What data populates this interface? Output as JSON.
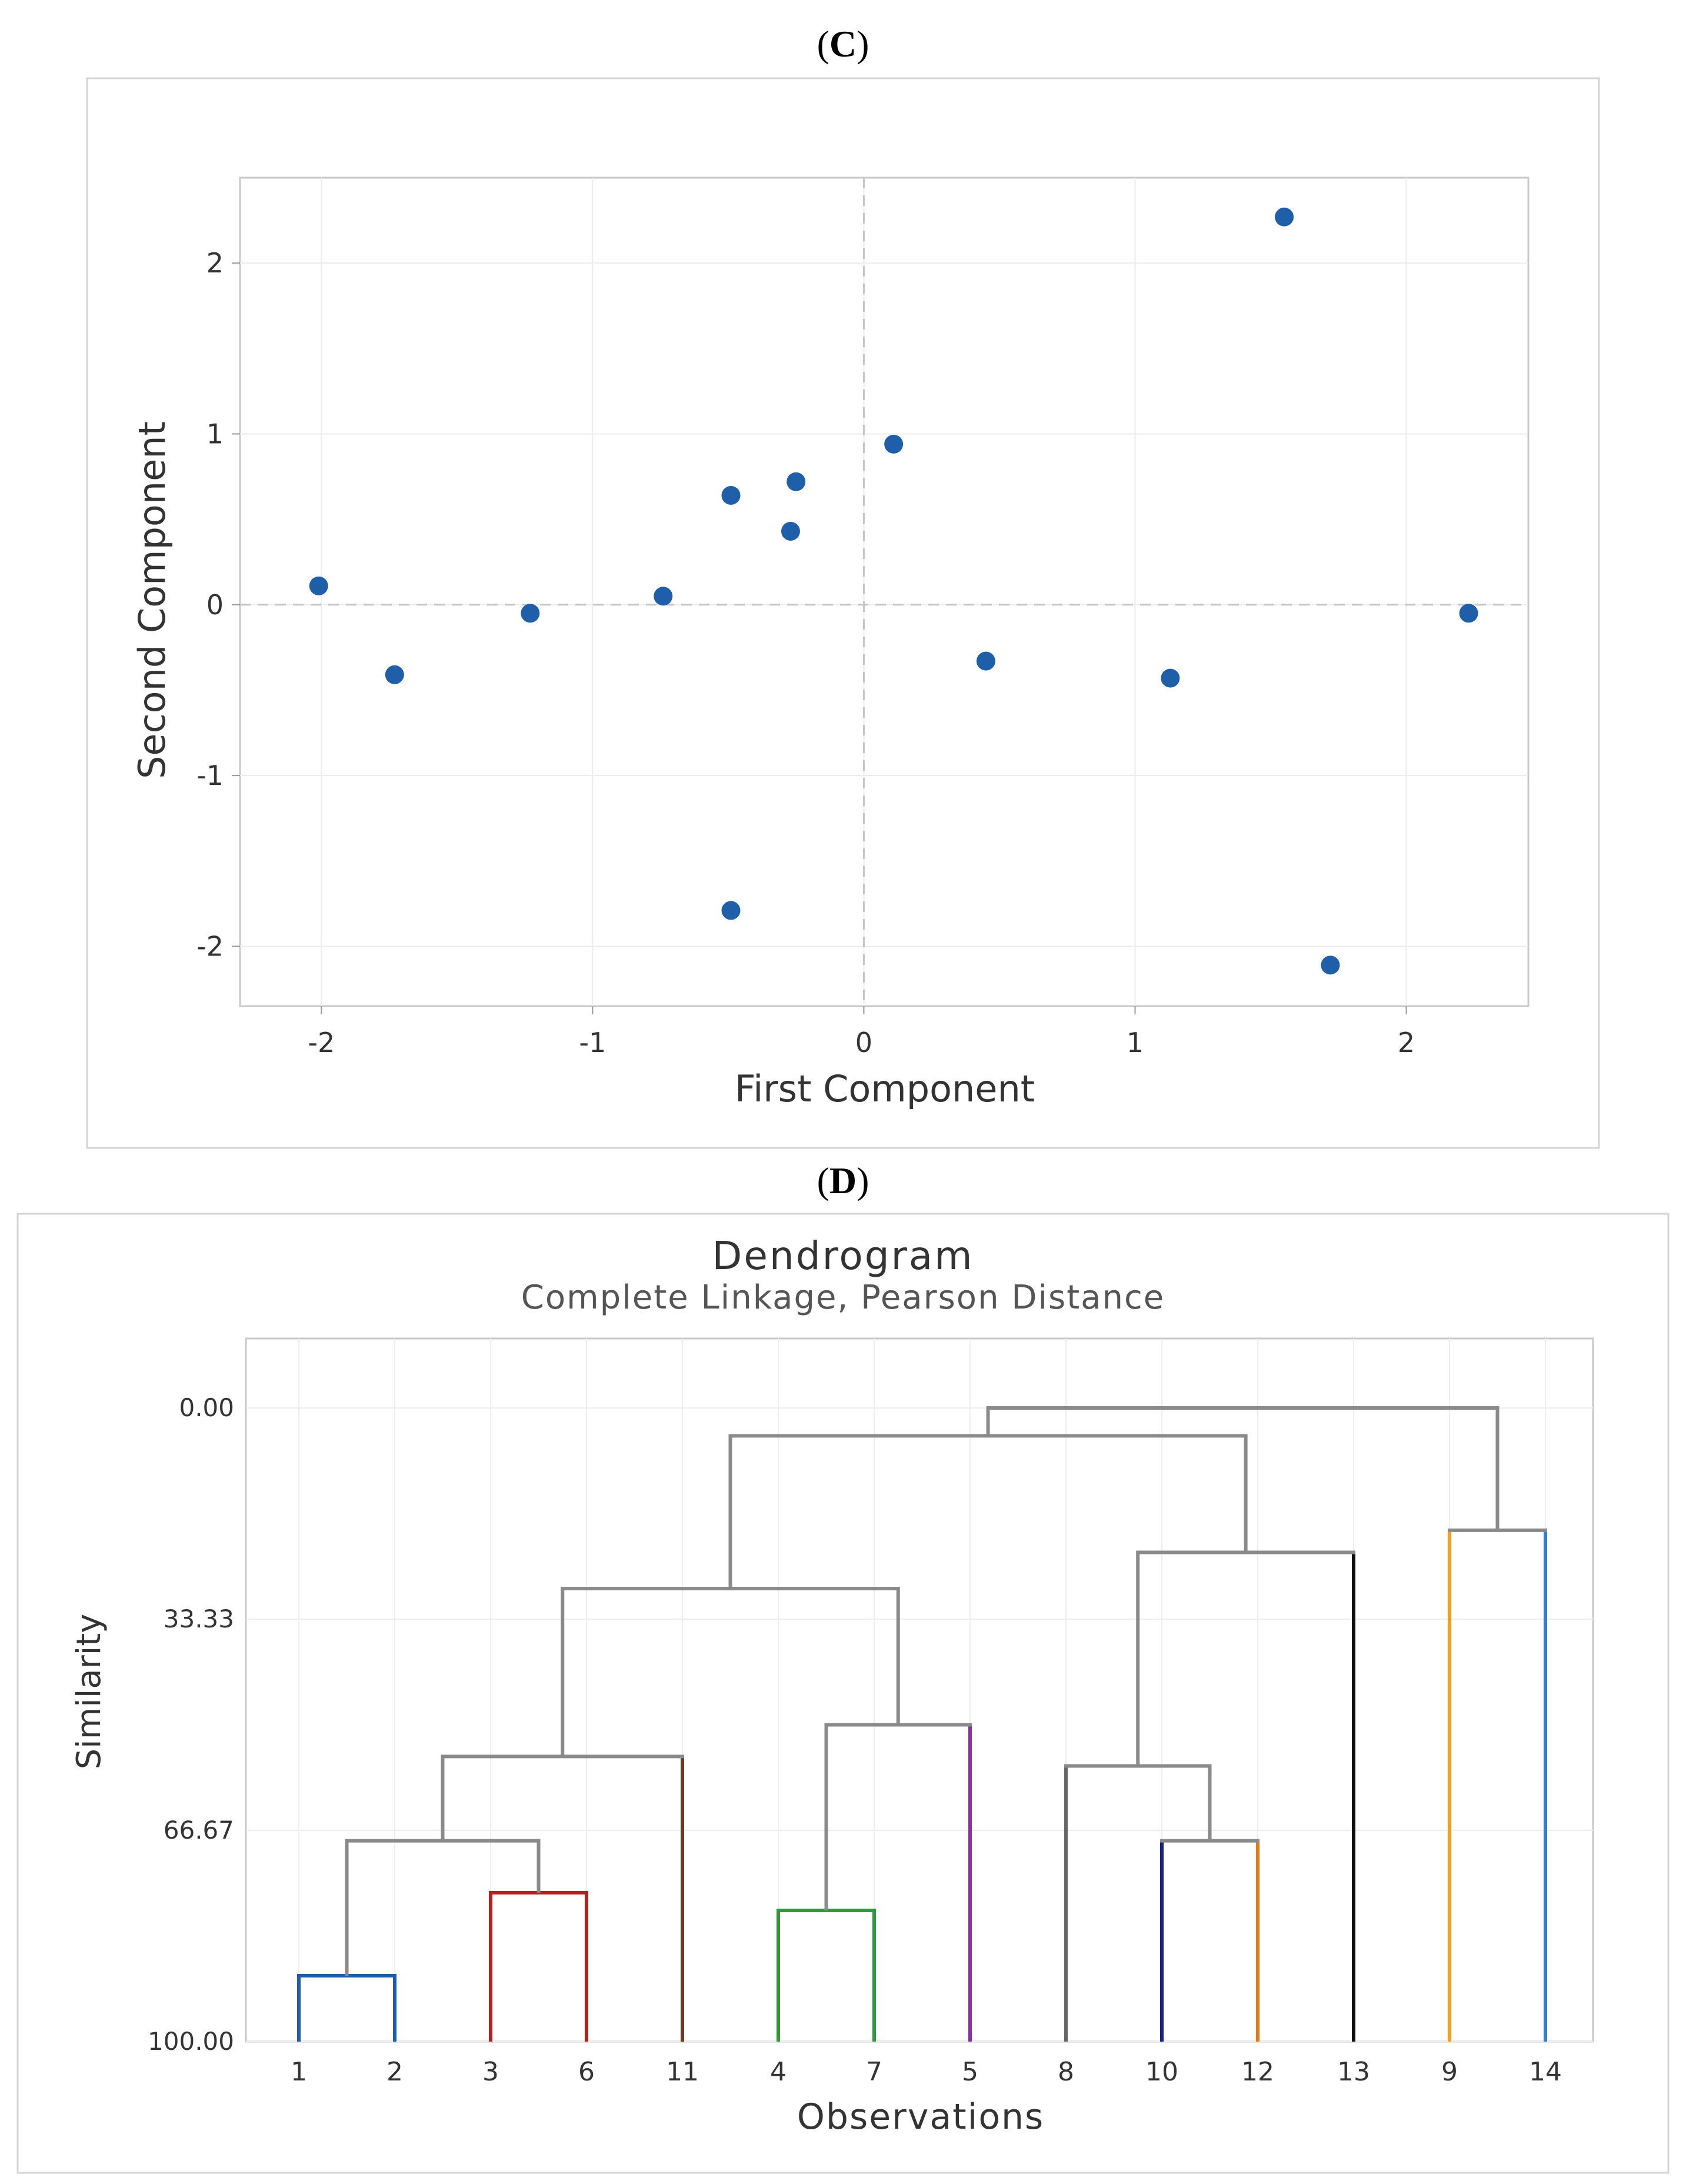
{
  "panels": {
    "c_label": "C",
    "d_label": "D"
  },
  "chart_data": [
    {
      "type": "scatter",
      "title": "",
      "xlabel": "First Component",
      "ylabel": "Second Component",
      "xlim": [
        -2.3,
        2.45
      ],
      "ylim": [
        -2.35,
        2.5
      ],
      "xticks": [
        -2,
        -1,
        0,
        1,
        2
      ],
      "yticks": [
        -2,
        -1,
        0,
        1,
        2
      ],
      "grid": true,
      "reference_lines": {
        "x": 0,
        "y": 0,
        "style": "dashed"
      },
      "marker_color": "#1f5ea8",
      "points": [
        {
          "x": -2.01,
          "y": 0.11
        },
        {
          "x": -1.73,
          "y": -0.41
        },
        {
          "x": -1.23,
          "y": -0.05
        },
        {
          "x": -0.74,
          "y": 0.05
        },
        {
          "x": -0.49,
          "y": 0.64
        },
        {
          "x": -0.27,
          "y": 0.43
        },
        {
          "x": -0.25,
          "y": 0.72
        },
        {
          "x": 0.11,
          "y": 0.94
        },
        {
          "x": 0.45,
          "y": -0.33
        },
        {
          "x": 1.13,
          "y": -0.43
        },
        {
          "x": 2.23,
          "y": -0.05
        },
        {
          "x": 1.55,
          "y": 2.27
        },
        {
          "x": -0.49,
          "y": -1.79
        },
        {
          "x": 1.72,
          "y": -2.11
        }
      ]
    },
    {
      "type": "dendrogram",
      "title": "Dendrogram",
      "subtitle": "Complete Linkage, Pearson Distance",
      "xlabel": "Observations",
      "ylabel": "Similarity",
      "ylim": [
        0,
        100
      ],
      "yticks": [
        "0.00",
        "33.33",
        "66.67",
        "100.00"
      ],
      "ytick_values": [
        0,
        33.33,
        66.67,
        100
      ],
      "grid": true,
      "leaves": [
        "1",
        "2",
        "3",
        "6",
        "11",
        "4",
        "7",
        "5",
        "8",
        "10",
        "12",
        "13",
        "9",
        "14"
      ],
      "clusters": [
        {
          "leaf": "1",
          "color": "#1f5ea8"
        },
        {
          "leaf": "2",
          "color": "#1f5ea8"
        },
        {
          "leaf": "3",
          "color": "#b22222"
        },
        {
          "leaf": "6",
          "color": "#b22222"
        },
        {
          "leaf": "11",
          "color": "#6b3a1e"
        },
        {
          "leaf": "4",
          "color": "#2e9b3a"
        },
        {
          "leaf": "7",
          "color": "#2e9b3a"
        },
        {
          "leaf": "5",
          "color": "#8b2fa8"
        },
        {
          "leaf": "8",
          "color": "#666666"
        },
        {
          "leaf": "10",
          "color": "#1a237e"
        },
        {
          "leaf": "12",
          "color": "#e07b1a"
        },
        {
          "leaf": "13",
          "color": "#111111"
        },
        {
          "leaf": "9",
          "color": "#f0a020"
        },
        {
          "leaf": "14",
          "color": "#3a7cc8"
        }
      ],
      "merges": [
        {
          "a": "1",
          "b": "2",
          "similarity": 89.6,
          "color": "#1f5ea8"
        },
        {
          "a": "3",
          "b": "6",
          "similarity": 76.5,
          "color": "#b22222"
        },
        {
          "a": "4",
          "b": "7",
          "similarity": 79.3,
          "color": "#2e9b3a"
        },
        {
          "a": "10",
          "b": "12",
          "similarity": 68.3,
          "color": "#888888"
        },
        {
          "a": "(1,2)",
          "b": "(3,6)",
          "similarity": 68.3,
          "color": "#888888"
        },
        {
          "a": "(1,2,3,6)",
          "b": "11",
          "similarity": 55.0,
          "color": "#888888"
        },
        {
          "a": "(4,7)",
          "b": "5",
          "similarity": 50.0,
          "color": "#888888"
        },
        {
          "a": "8",
          "b": "(10,12)",
          "similarity": 56.5,
          "color": "#888888"
        },
        {
          "a": "(1,2,3,6,11)",
          "b": "(4,7,5)",
          "similarity": 28.5,
          "color": "#888888"
        },
        {
          "a": "(8,10,12)",
          "b": "13",
          "similarity": 22.8,
          "color": "#888888"
        },
        {
          "a": "9",
          "b": "14",
          "similarity": 19.3,
          "color": "#888888"
        },
        {
          "a": "(1..5,6,7,11)",
          "b": "(8,10,12,13)",
          "similarity": 4.4,
          "color": "#888888"
        },
        {
          "a": "(all but 9,14)",
          "b": "(9,14)",
          "similarity": 0.0,
          "color": "#888888"
        }
      ]
    }
  ]
}
